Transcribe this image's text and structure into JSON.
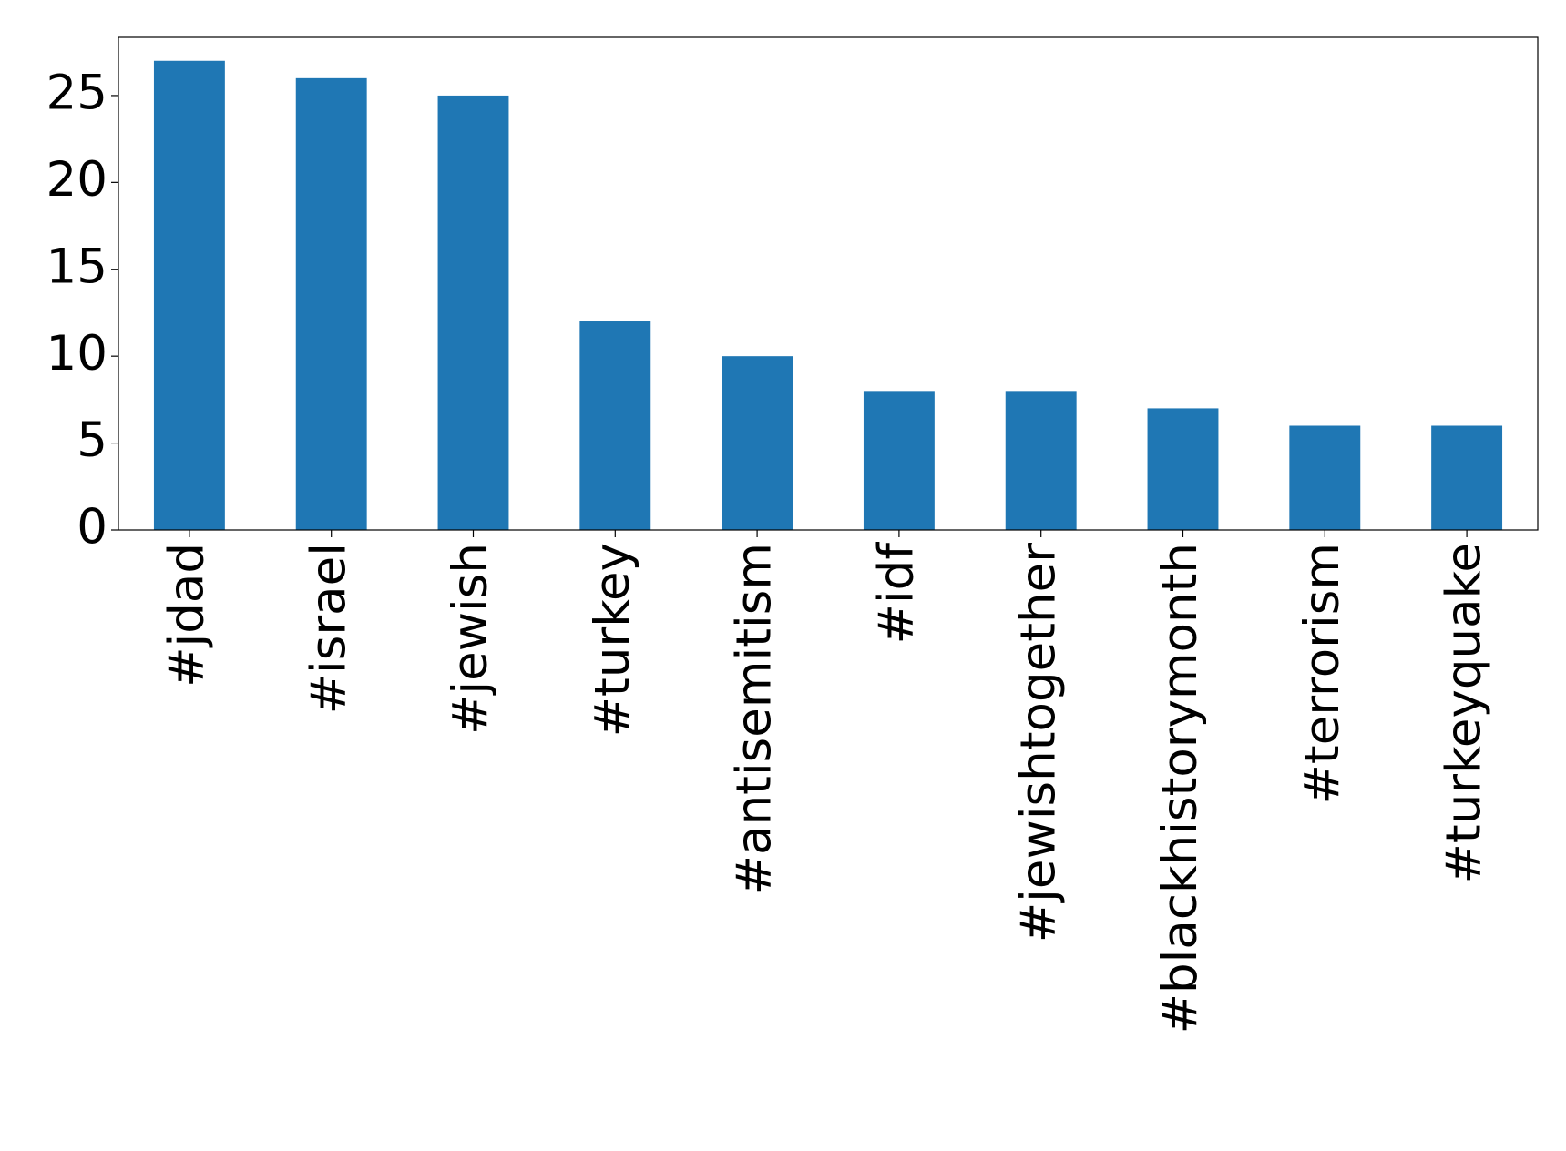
{
  "chart_data": {
    "type": "bar",
    "categories": [
      "#jdad",
      "#israel",
      "#jewish",
      "#turkey",
      "#antisemitism",
      "#idf",
      "#jewishtogether",
      "#blackhistorymonth",
      "#terrorism",
      "#turkeyquake"
    ],
    "values": [
      27,
      26,
      25,
      12,
      10,
      8,
      8,
      7,
      6,
      6
    ],
    "color": "#1f77b4",
    "ylim": [
      0,
      28.35
    ],
    "yticks": [
      0,
      5,
      10,
      15,
      20,
      25
    ],
    "grid": false
  }
}
